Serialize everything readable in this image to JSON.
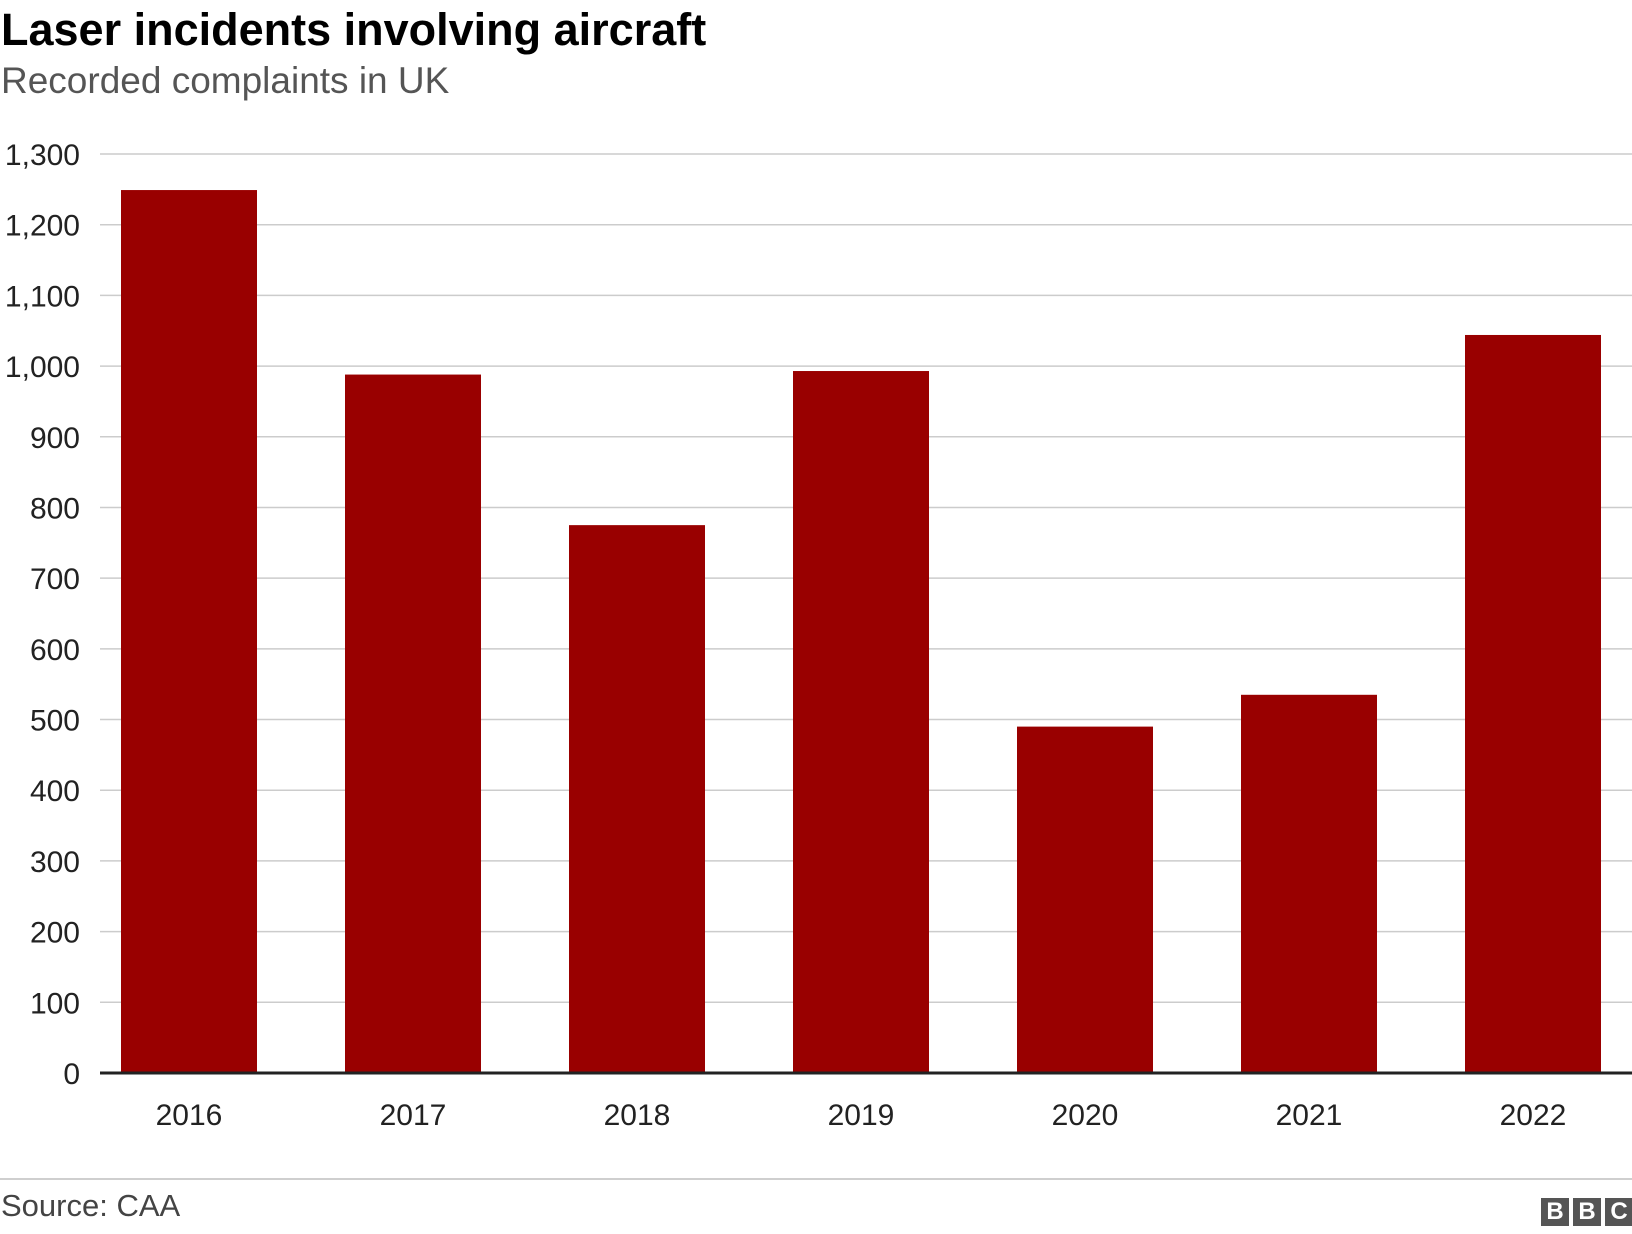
{
  "title": "Laser incidents involving aircraft",
  "subtitle": "Recorded complaints in UK",
  "source": "Source: CAA",
  "logo": [
    "B",
    "B",
    "C"
  ],
  "colors": {
    "bar": "#990000",
    "grid": "#cccccc",
    "axis": "#222222",
    "text": "#222222"
  },
  "chart_data": {
    "type": "bar",
    "categories": [
      "2016",
      "2017",
      "2018",
      "2019",
      "2020",
      "2021",
      "2022"
    ],
    "values": [
      1249,
      988,
      775,
      993,
      490,
      535,
      1044
    ],
    "xlabel": "",
    "ylabel": "",
    "ylim": [
      0,
      1300
    ],
    "yticks": [
      0,
      100,
      200,
      300,
      400,
      500,
      600,
      700,
      800,
      900,
      1000,
      1100,
      1200,
      1300
    ],
    "ytick_labels": [
      "0",
      "100",
      "200",
      "300",
      "400",
      "500",
      "600",
      "700",
      "800",
      "900",
      "1,000",
      "1,100",
      "1,200",
      "1,300"
    ],
    "grid": true,
    "legend": "none"
  }
}
